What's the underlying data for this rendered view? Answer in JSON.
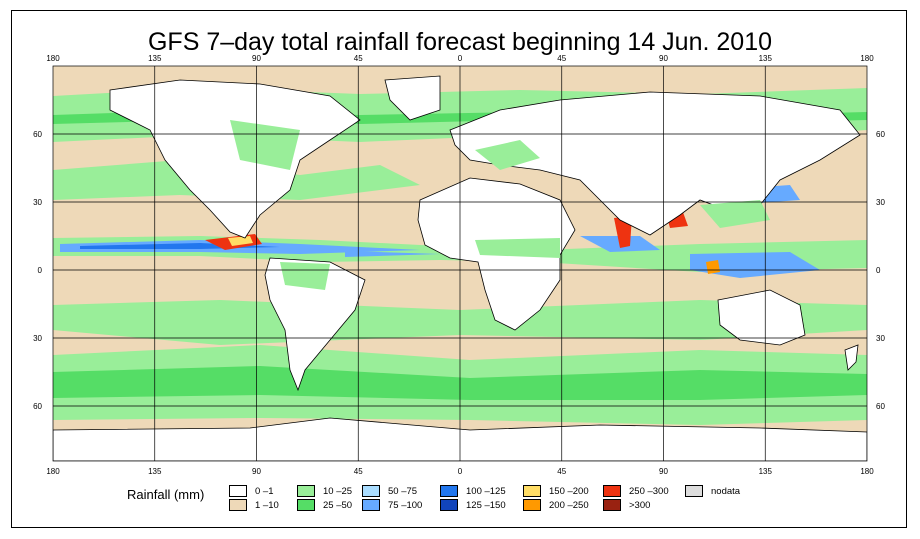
{
  "title": "GFS 7–day total rainfall forecast beginning 14 Jun. 2010",
  "longitude_ticks": [
    "180",
    "135",
    "90",
    "45",
    "0",
    "45",
    "90",
    "135",
    "180"
  ],
  "latitude_left_ticks": [
    "60",
    "30",
    "0",
    "30",
    "60"
  ],
  "latitude_right_ticks": [
    "60",
    "30",
    "0",
    "30",
    "60"
  ],
  "legend": {
    "title": "Rainfall (mm)",
    "items": [
      {
        "label": "0 –1",
        "color": "#ffffff"
      },
      {
        "label": "1 –10",
        "color": "#eed9b8"
      },
      {
        "label": "10 –25",
        "color": "#99ee99"
      },
      {
        "label": "25 –50",
        "color": "#55dd66"
      },
      {
        "label": "50 –75",
        "color": "#aaddff"
      },
      {
        "label": "75 –100",
        "color": "#66aaff"
      },
      {
        "label": "100 –125",
        "color": "#2277ee"
      },
      {
        "label": "125 –150",
        "color": "#1144bb"
      },
      {
        "label": "150 –200",
        "color": "#ffdd66"
      },
      {
        "label": "200 –250",
        "color": "#ff9900"
      },
      {
        "label": "250 –300",
        "color": "#ee3311"
      },
      {
        "label": ">300",
        "color": "#992211"
      },
      {
        "label": "nodata",
        "color": "#dddddd"
      }
    ]
  }
}
